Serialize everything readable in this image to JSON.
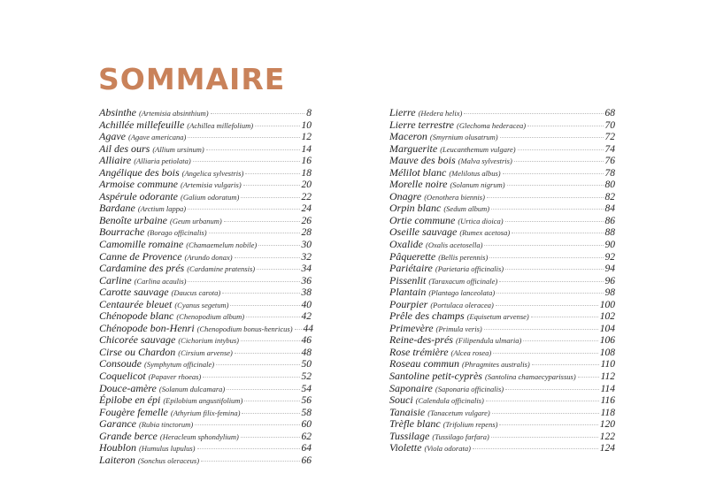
{
  "title": "SOMMAIRE",
  "title_color": "#c9825a",
  "left": [
    {
      "name": "Absinthe",
      "latin": "(Artemisia absinthium)",
      "page": "8"
    },
    {
      "name": "Achillée millefeuille",
      "latin": "(Achillea millefolium)",
      "page": "10"
    },
    {
      "name": "Agave",
      "latin": "(Agave americana)",
      "page": "12"
    },
    {
      "name": "Ail des ours",
      "latin": "(Allium ursinum)",
      "page": "14"
    },
    {
      "name": "Alliaire",
      "latin": "(Alliaria petiolata)",
      "page": "16"
    },
    {
      "name": "Angélique des bois",
      "latin": "(Angelica sylvestris)",
      "page": "18"
    },
    {
      "name": "Armoise commune",
      "latin": "(Artemisia vulgaris)",
      "page": "20"
    },
    {
      "name": "Aspérule odorante",
      "latin": "(Galium odoratum)",
      "page": "22"
    },
    {
      "name": "Bardane",
      "latin": "(Arctium lappa)",
      "page": "24"
    },
    {
      "name": "Benoîte urbaine",
      "latin": "(Geum urbanum)",
      "page": "26"
    },
    {
      "name": "Bourrache",
      "latin": "(Borago officinalis)",
      "page": "28"
    },
    {
      "name": "Camomille romaine",
      "latin": "(Chamaemelum nobile)",
      "page": "30"
    },
    {
      "name": "Canne de Provence",
      "latin": "(Arundo donax)",
      "page": "32"
    },
    {
      "name": "Cardamine des prés",
      "latin": "(Cardamine pratensis)",
      "page": "34"
    },
    {
      "name": "Carline",
      "latin": "(Carlina acaulis)",
      "page": "36"
    },
    {
      "name": "Carotte sauvage",
      "latin": "(Daucus carota)",
      "page": "38"
    },
    {
      "name": "Centaurée bleuet",
      "latin": "(Cyanus segetum)",
      "page": "40"
    },
    {
      "name": "Chénopode blanc",
      "latin": "(Chenopodium album)",
      "page": "42"
    },
    {
      "name": "Chénopode bon-Henri",
      "latin": "(Chenopodium bonus-henricus)",
      "page": "44"
    },
    {
      "name": "Chicorée sauvage",
      "latin": "(Cichorium intybus)",
      "page": "46"
    },
    {
      "name": "Cirse ou Chardon",
      "latin": "(Cirsium arvense)",
      "page": "48"
    },
    {
      "name": "Consoude",
      "latin": "(Symphytum officinale)",
      "page": "50"
    },
    {
      "name": "Coquelicot",
      "latin": "(Papaver rhoeas)",
      "page": "52"
    },
    {
      "name": "Douce-amère",
      "latin": "(Solanum dulcamara)",
      "page": "54"
    },
    {
      "name": "Épilobe en épi",
      "latin": "(Epilobium angustifolium)",
      "page": "56"
    },
    {
      "name": "Fougère femelle",
      "latin": "(Athyrium filix-femina)",
      "page": "58"
    },
    {
      "name": "Garance",
      "latin": "(Rubia tinctorum)",
      "page": "60"
    },
    {
      "name": "Grande berce",
      "latin": "(Heracleum sphondylium)",
      "page": "62"
    },
    {
      "name": "Houblon",
      "latin": "(Humulus lupulus)",
      "page": "64"
    },
    {
      "name": "Laiteron",
      "latin": "(Sonchus oleraceus)",
      "page": "66"
    }
  ],
  "right": [
    {
      "name": "Lierre",
      "latin": "(Hedera helix)",
      "page": "68"
    },
    {
      "name": "Lierre terrestre",
      "latin": "(Glechoma hederacea)",
      "page": "70"
    },
    {
      "name": "Maceron",
      "latin": "(Smyrnium olusatrum)",
      "page": "72"
    },
    {
      "name": "Marguerite",
      "latin": "(Leucanthemum vulgare)",
      "page": "74"
    },
    {
      "name": "Mauve des bois",
      "latin": "(Malva sylvestris)",
      "page": "76"
    },
    {
      "name": "Mélilot blanc",
      "latin": "(Melilotus albus)",
      "page": "78"
    },
    {
      "name": "Morelle noire",
      "latin": "(Solanum nigrum)",
      "page": "80"
    },
    {
      "name": "Onagre",
      "latin": "(Oenothera biennis)",
      "page": "82"
    },
    {
      "name": "Orpin blanc",
      "latin": "(Sedum album)",
      "page": "84"
    },
    {
      "name": "Ortie commune",
      "latin": "(Urtica dioica)",
      "page": "86"
    },
    {
      "name": "Oseille sauvage",
      "latin": "(Rumex acetosa)",
      "page": "88"
    },
    {
      "name": "Oxalide",
      "latin": "(Oxalis acetosella)",
      "page": "90"
    },
    {
      "name": "Pâquerette",
      "latin": "(Bellis perennis)",
      "page": "92"
    },
    {
      "name": "Pariétaire",
      "latin": "(Parietaria officinalis)",
      "page": "94"
    },
    {
      "name": "Pissenlit",
      "latin": "(Taraxacum officinale)",
      "page": "96"
    },
    {
      "name": "Plantain",
      "latin": "(Plantago lanceolata)",
      "page": "98"
    },
    {
      "name": "Pourpier",
      "latin": "(Portulaca oleracea)",
      "page": "100"
    },
    {
      "name": "Prêle des champs",
      "latin": "(Equisetum arvense)",
      "page": "102"
    },
    {
      "name": "Primevère",
      "latin": "(Primula veris)",
      "page": "104"
    },
    {
      "name": "Reine-des-prés",
      "latin": "(Filipendula ulmaria)",
      "page": "106"
    },
    {
      "name": "Rose trémière",
      "latin": "(Alcea rosea)",
      "page": "108"
    },
    {
      "name": "Roseau commun",
      "latin": "(Phragmites australis)",
      "page": "110"
    },
    {
      "name": "Santoline petit-cyprès",
      "latin": "(Santolina chamaecyparissus)",
      "page": "112"
    },
    {
      "name": "Saponaire",
      "latin": "(Saponaria officinalis)",
      "page": "114"
    },
    {
      "name": "Souci",
      "latin": "(Calendula officinalis)",
      "page": "116"
    },
    {
      "name": "Tanaisie",
      "latin": "(Tanacetum vulgare)",
      "page": "118"
    },
    {
      "name": "Trèfle blanc",
      "latin": "(Trifolium repens)",
      "page": "120"
    },
    {
      "name": "Tussilage",
      "latin": "(Tussilago farfara)",
      "page": "122"
    },
    {
      "name": "Violette",
      "latin": "(Viola odorata)",
      "page": "124"
    }
  ]
}
